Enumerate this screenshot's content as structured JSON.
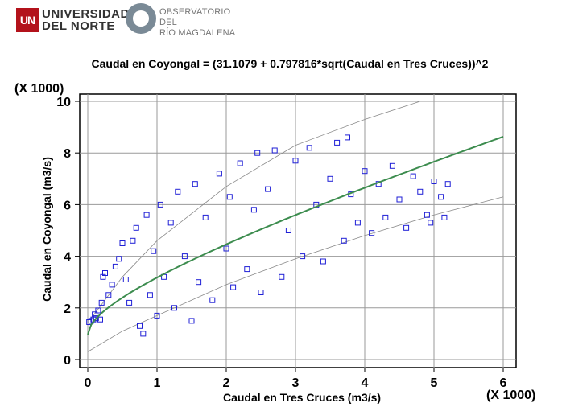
{
  "logos": {
    "university_line1": "UNIVERSIDAD",
    "university_line2": "DEL NORTE",
    "university_badge": "UN",
    "observatory_line1": "OBSERVATORIO DEL",
    "observatory_line2": "RÍO MAGDALENA"
  },
  "chart_data": {
    "type": "scatter",
    "title": "Caudal en Coyongal = (31.1079 + 0.797816*sqrt(Caudal en Tres Cruces))^2",
    "xlabel": "Caudal en Tres Cruces (m3/s)",
    "ylabel": "Caudal en Coyongal (m3/s)",
    "x_multiplier": "(X 1000)",
    "y_multiplier": "(X 1000)",
    "x_ticks": [
      "0",
      "1",
      "2",
      "3",
      "4",
      "5",
      "6"
    ],
    "y_ticks": [
      "0",
      "2",
      "4",
      "6",
      "8",
      "10"
    ],
    "xlim": [
      0,
      6
    ],
    "ylim": [
      0,
      10
    ],
    "grid": true,
    "model": {
      "a": 31.1079,
      "b": 0.797816,
      "scale": 1000
    },
    "colors": {
      "points": "#1f1fd6",
      "fit": "#3c8c4e",
      "bands": "#8a8a8a",
      "grid": "#9a9a9a"
    },
    "prediction_band_upper": [
      [
        0.05,
        1.6
      ],
      [
        0.5,
        3.2
      ],
      [
        1,
        4.6
      ],
      [
        2,
        6.7
      ],
      [
        3,
        8.3
      ],
      [
        4,
        9.3
      ],
      [
        4.8,
        10.0
      ]
    ],
    "prediction_band_lower": [
      [
        0.0,
        0.3
      ],
      [
        0.5,
        1.1
      ],
      [
        1,
        1.7
      ],
      [
        2,
        2.9
      ],
      [
        3,
        3.9
      ],
      [
        4,
        4.8
      ],
      [
        5,
        5.6
      ],
      [
        6,
        6.3
      ]
    ],
    "points": [
      [
        0.02,
        1.45
      ],
      [
        0.05,
        1.5
      ],
      [
        0.08,
        1.55
      ],
      [
        0.12,
        1.6
      ],
      [
        0.1,
        1.75
      ],
      [
        0.15,
        1.9
      ],
      [
        0.18,
        1.55
      ],
      [
        0.2,
        2.2
      ],
      [
        0.22,
        3.2
      ],
      [
        0.25,
        3.35
      ],
      [
        0.3,
        2.5
      ],
      [
        0.35,
        2.9
      ],
      [
        0.4,
        3.6
      ],
      [
        0.45,
        3.9
      ],
      [
        0.5,
        4.5
      ],
      [
        0.55,
        3.1
      ],
      [
        0.6,
        2.2
      ],
      [
        0.65,
        4.6
      ],
      [
        0.7,
        5.1
      ],
      [
        0.75,
        1.3
      ],
      [
        0.8,
        1.0
      ],
      [
        0.85,
        5.6
      ],
      [
        0.9,
        2.5
      ],
      [
        0.95,
        4.2
      ],
      [
        1.0,
        1.7
      ],
      [
        1.05,
        6.0
      ],
      [
        1.1,
        3.2
      ],
      [
        1.2,
        5.3
      ],
      [
        1.25,
        2.0
      ],
      [
        1.3,
        6.5
      ],
      [
        1.4,
        4.0
      ],
      [
        1.5,
        1.5
      ],
      [
        1.55,
        6.8
      ],
      [
        1.6,
        3.0
      ],
      [
        1.7,
        5.5
      ],
      [
        1.8,
        2.3
      ],
      [
        1.9,
        7.2
      ],
      [
        2.0,
        4.3
      ],
      [
        2.05,
        6.3
      ],
      [
        2.1,
        2.8
      ],
      [
        2.2,
        7.6
      ],
      [
        2.3,
        3.5
      ],
      [
        2.4,
        5.8
      ],
      [
        2.45,
        8.0
      ],
      [
        2.5,
        2.6
      ],
      [
        2.6,
        6.6
      ],
      [
        2.7,
        8.1
      ],
      [
        2.8,
        3.2
      ],
      [
        2.9,
        5.0
      ],
      [
        3.0,
        7.7
      ],
      [
        3.1,
        4.0
      ],
      [
        3.2,
        8.2
      ],
      [
        3.3,
        6.0
      ],
      [
        3.4,
        3.8
      ],
      [
        3.5,
        7.0
      ],
      [
        3.6,
        8.4
      ],
      [
        3.7,
        4.6
      ],
      [
        3.75,
        8.6
      ],
      [
        3.8,
        6.4
      ],
      [
        3.9,
        5.3
      ],
      [
        4.0,
        7.3
      ],
      [
        4.1,
        4.9
      ],
      [
        4.2,
        6.8
      ],
      [
        4.3,
        5.5
      ],
      [
        4.4,
        7.5
      ],
      [
        4.5,
        6.2
      ],
      [
        4.6,
        5.1
      ],
      [
        4.7,
        7.1
      ],
      [
        4.8,
        6.5
      ],
      [
        4.9,
        5.6
      ],
      [
        5.0,
        6.9
      ],
      [
        5.1,
        6.3
      ],
      [
        5.2,
        6.8
      ],
      [
        5.15,
        5.5
      ],
      [
        4.95,
        5.3
      ]
    ]
  }
}
